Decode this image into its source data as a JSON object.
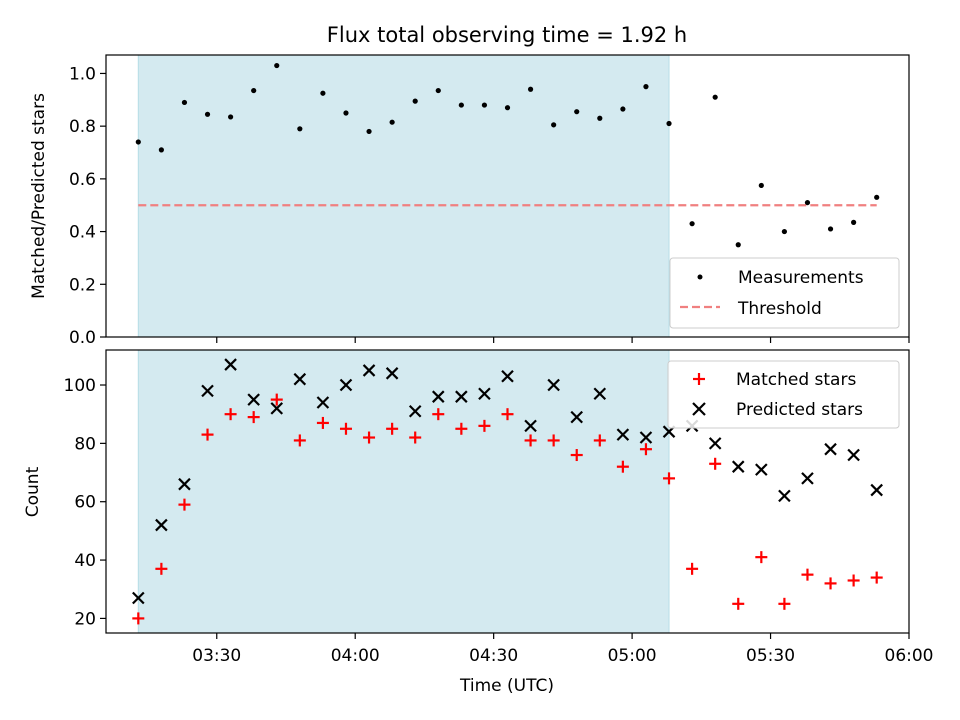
{
  "chart_data": [
    {
      "type": "scatter",
      "title": "Flux total observing time = 1.92 h",
      "xlabel": "",
      "ylabel": "Matched/Predicted stars",
      "ylim": [
        0,
        1.07
      ],
      "yticks": [
        0.0,
        0.2,
        0.4,
        0.6,
        0.8,
        1.0
      ],
      "ytick_labels": [
        "0.0",
        "0.2",
        "0.4",
        "0.6",
        "0.8",
        "1.0"
      ],
      "shaded_interval": {
        "start": "03:13",
        "end": "05:08",
        "color": "#d4eaf0"
      },
      "threshold": {
        "value": 0.5,
        "from": "03:13",
        "to": "05:53"
      },
      "legend_position": "lower-right",
      "legend": [
        {
          "label": "Measurements",
          "marker": "dot",
          "color": "#000000"
        },
        {
          "label": "Threshold",
          "marker": "dashed-line",
          "color": "#f08080"
        }
      ],
      "series": [
        {
          "name": "Measurements",
          "marker": "dot",
          "color": "#000000",
          "x": [
            "03:13",
            "03:18",
            "03:23",
            "03:28",
            "03:33",
            "03:38",
            "03:43",
            "03:48",
            "03:53",
            "03:58",
            "04:03",
            "04:08",
            "04:13",
            "04:18",
            "04:23",
            "04:28",
            "04:33",
            "04:38",
            "04:43",
            "04:48",
            "04:53",
            "04:58",
            "05:03",
            "05:08",
            "05:13",
            "05:18",
            "05:23",
            "05:28",
            "05:33",
            "05:38",
            "05:43",
            "05:48",
            "05:53"
          ],
          "y": [
            0.74,
            0.71,
            0.89,
            0.845,
            0.835,
            0.935,
            1.03,
            0.79,
            0.925,
            0.85,
            0.78,
            0.815,
            0.895,
            0.935,
            0.88,
            0.88,
            0.87,
            0.94,
            0.805,
            0.855,
            0.83,
            0.865,
            0.95,
            0.81,
            0.43,
            0.91,
            0.35,
            0.575,
            0.4,
            0.51,
            0.41,
            0.435,
            0.53
          ]
        }
      ]
    },
    {
      "type": "scatter",
      "title": "",
      "xlabel": "Time (UTC)",
      "ylabel": "Count",
      "xlim": [
        "03:06",
        "06:00"
      ],
      "xticks": [
        "03:30",
        "04:00",
        "04:30",
        "05:00",
        "05:30",
        "06:00"
      ],
      "ylim": [
        15,
        112
      ],
      "yticks": [
        20,
        40,
        60,
        80,
        100
      ],
      "ytick_labels": [
        "20",
        "40",
        "60",
        "80",
        "100"
      ],
      "shaded_interval": {
        "start": "03:13",
        "end": "05:08",
        "color": "#d4eaf0"
      },
      "legend_position": "upper-right",
      "legend": [
        {
          "label": "Matched stars",
          "marker": "plus",
          "color": "#ff0000"
        },
        {
          "label": "Predicted stars",
          "marker": "x",
          "color": "#000000"
        }
      ],
      "series": [
        {
          "name": "Matched stars",
          "marker": "plus",
          "color": "#ff0000",
          "x": [
            "03:13",
            "03:18",
            "03:23",
            "03:28",
            "03:33",
            "03:38",
            "03:43",
            "03:48",
            "03:53",
            "03:58",
            "04:03",
            "04:08",
            "04:13",
            "04:18",
            "04:23",
            "04:28",
            "04:33",
            "04:38",
            "04:43",
            "04:48",
            "04:53",
            "04:58",
            "05:03",
            "05:08",
            "05:13",
            "05:18",
            "05:23",
            "05:28",
            "05:33",
            "05:38",
            "05:43",
            "05:48",
            "05:53"
          ],
          "y": [
            20,
            37,
            59,
            83,
            90,
            89,
            95,
            81,
            87,
            85,
            82,
            85,
            82,
            90,
            85,
            86,
            90,
            81,
            81,
            76,
            81,
            72,
            78,
            68,
            37,
            73,
            25,
            41,
            25,
            35,
            32,
            33,
            34
          ]
        },
        {
          "name": "Predicted stars",
          "marker": "x",
          "color": "#000000",
          "x": [
            "03:13",
            "03:18",
            "03:23",
            "03:28",
            "03:33",
            "03:38",
            "03:43",
            "03:48",
            "03:53",
            "03:58",
            "04:03",
            "04:08",
            "04:13",
            "04:18",
            "04:23",
            "04:28",
            "04:33",
            "04:38",
            "04:43",
            "04:48",
            "04:53",
            "04:58",
            "05:03",
            "05:08",
            "05:13",
            "05:18",
            "05:23",
            "05:28",
            "05:33",
            "05:38",
            "05:43",
            "05:48",
            "05:53"
          ],
          "y": [
            27,
            52,
            66,
            98,
            107,
            95,
            92,
            102,
            94,
            100,
            105,
            104,
            91,
            96,
            96,
            97,
            103,
            86,
            100,
            89,
            97,
            83,
            82,
            84,
            86,
            80,
            72,
            71,
            62,
            68,
            78,
            76,
            64
          ]
        }
      ]
    }
  ]
}
